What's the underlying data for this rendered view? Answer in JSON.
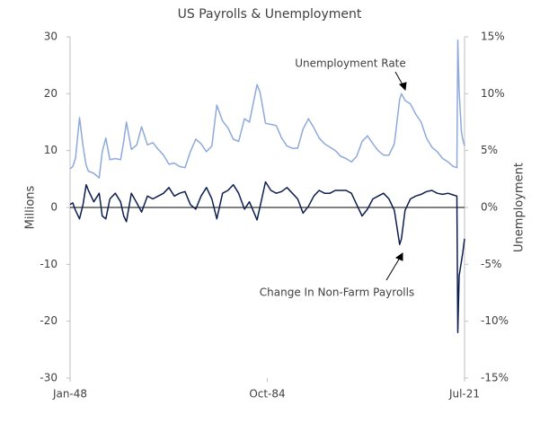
{
  "chart_data": {
    "type": "line",
    "title": "US Payrolls & Unemployment",
    "ylabel": "Millions",
    "y2label": "Unemployment",
    "annotations": [
      "Unemployment Rate",
      "Change In Non-Farm Payrolls"
    ],
    "x": [
      "1948-01",
      "1948-07",
      "1949-01",
      "1949-10",
      "1950-06",
      "1951-01",
      "1951-06",
      "1952-06",
      "1953-06",
      "1954-01",
      "1954-09",
      "1955-06",
      "1956-06",
      "1957-06",
      "1958-01",
      "1958-07",
      "1959-06",
      "1960-06",
      "1961-05",
      "1962-06",
      "1963-06",
      "1964-06",
      "1965-06",
      "1966-06",
      "1967-06",
      "1968-06",
      "1969-06",
      "1970-06",
      "1971-06",
      "1972-06",
      "1973-06",
      "1974-06",
      "1975-05",
      "1976-06",
      "1977-06",
      "1978-06",
      "1979-06",
      "1980-07",
      "1981-06",
      "1982-11",
      "1983-06",
      "1984-06",
      "1985-06",
      "1986-06",
      "1987-06",
      "1988-06",
      "1989-06",
      "1990-06",
      "1991-06",
      "1992-06",
      "1993-06",
      "1994-06",
      "1995-06",
      "1996-06",
      "1997-06",
      "1998-06",
      "1999-06",
      "2000-06",
      "2001-06",
      "2002-06",
      "2003-06",
      "2004-06",
      "2005-06",
      "2006-06",
      "2007-06",
      "2008-06",
      "2009-06",
      "2009-10",
      "2010-06",
      "2011-06",
      "2012-06",
      "2013-06",
      "2014-06",
      "2015-06",
      "2016-06",
      "2017-06",
      "2018-06",
      "2019-06",
      "2020-02",
      "2020-04",
      "2020-07",
      "2020-12",
      "2021-03",
      "2021-07"
    ],
    "series": [
      {
        "name": "Change In Non-Farm Payrolls",
        "color": "#0d1f4f",
        "axis": "y",
        "values": [
          0.5,
          0.8,
          -0.5,
          -2.0,
          0.5,
          4.0,
          3.0,
          1.0,
          2.5,
          -1.5,
          -2.0,
          1.5,
          2.5,
          1.0,
          -1.5,
          -2.5,
          2.5,
          0.8,
          -0.8,
          2.0,
          1.5,
          2.0,
          2.5,
          3.5,
          2.0,
          2.5,
          2.8,
          0.5,
          -0.3,
          2.0,
          3.5,
          1.5,
          -2.0,
          2.5,
          3.0,
          4.0,
          2.5,
          -0.3,
          1.0,
          -2.2,
          0.2,
          4.5,
          3.0,
          2.5,
          2.8,
          3.5,
          2.5,
          1.5,
          -1.0,
          0.2,
          2.0,
          3.0,
          2.5,
          2.5,
          3.0,
          3.0,
          3.0,
          2.5,
          0.5,
          -1.5,
          -0.3,
          1.5,
          2.0,
          2.5,
          1.5,
          -0.5,
          -6.5,
          -5.5,
          -0.5,
          1.5,
          2.0,
          2.3,
          2.8,
          3.0,
          2.5,
          2.3,
          2.5,
          2.2,
          2.0,
          -22.0,
          -12.0,
          -9.5,
          -8.0,
          -5.5
        ]
      },
      {
        "name": "Unemployment Rate",
        "color": "#8eaadb",
        "axis": "y2",
        "values": [
          3.4,
          3.6,
          4.3,
          7.9,
          5.4,
          3.7,
          3.2,
          3.0,
          2.6,
          4.9,
          6.1,
          4.2,
          4.3,
          4.2,
          5.8,
          7.5,
          5.1,
          5.5,
          7.1,
          5.5,
          5.7,
          5.1,
          4.6,
          3.8,
          3.9,
          3.6,
          3.5,
          4.9,
          6.0,
          5.6,
          4.9,
          5.4,
          9.0,
          7.6,
          7.0,
          6.0,
          5.8,
          7.8,
          7.5,
          10.8,
          10.1,
          7.4,
          7.3,
          7.2,
          6.1,
          5.4,
          5.2,
          5.2,
          6.9,
          7.8,
          7.0,
          6.1,
          5.6,
          5.3,
          5.0,
          4.5,
          4.3,
          4.0,
          4.5,
          5.8,
          6.3,
          5.6,
          5.0,
          4.6,
          4.6,
          5.6,
          9.5,
          10.0,
          9.4,
          9.1,
          8.2,
          7.5,
          6.1,
          5.3,
          4.9,
          4.3,
          4.0,
          3.6,
          3.5,
          14.7,
          10.2,
          6.7,
          6.0,
          5.4
        ]
      }
    ],
    "xlim": [
      "1948-01",
      "2021-07"
    ],
    "xticks": [
      {
        "value": "1948-01",
        "label": "Jan-48"
      },
      {
        "value": "1984-10",
        "label": "Oct-84"
      },
      {
        "value": "2021-07",
        "label": "Jul-21"
      }
    ],
    "ylim": [
      -30,
      30
    ],
    "yticks": [
      -30,
      -20,
      -10,
      0,
      10,
      20,
      30
    ],
    "y2lim": [
      -15,
      15
    ],
    "y2ticks": [
      {
        "value": -15,
        "label": "-15%"
      },
      {
        "value": -10,
        "label": "-10%"
      },
      {
        "value": -5,
        "label": "-5%"
      },
      {
        "value": 0,
        "label": "0%"
      },
      {
        "value": 5,
        "label": "5%"
      },
      {
        "value": 10,
        "label": "10%"
      },
      {
        "value": 15,
        "label": "15%"
      }
    ],
    "grid": false
  }
}
